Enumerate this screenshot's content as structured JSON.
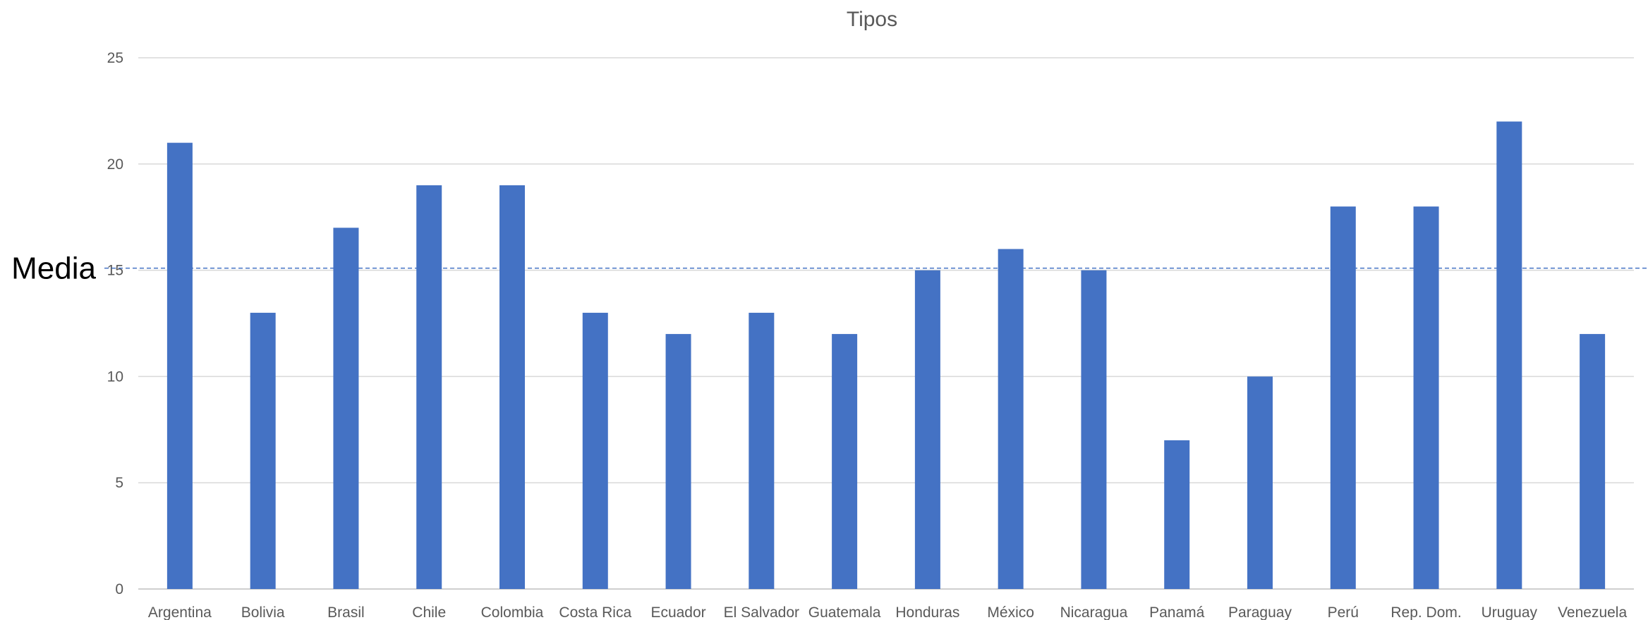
{
  "chart_data": {
    "type": "bar",
    "title": "Tipos",
    "xlabel": "",
    "ylabel": "",
    "categories": [
      "Argentina",
      "Bolivia",
      "Brasil",
      "Chile",
      "Colombia",
      "Costa Rica",
      "Ecuador",
      "El Salvador",
      "Guatemala",
      "Honduras",
      "México",
      "Nicaragua",
      "Panamá",
      "Paraguay",
      "Perú",
      "Rep. Dom.",
      "Uruguay",
      "Venezuela"
    ],
    "values": [
      21,
      13,
      17,
      19,
      19,
      13,
      12,
      13,
      12,
      15,
      16,
      15,
      7,
      10,
      18,
      18,
      22,
      12
    ],
    "ylim": [
      0,
      25
    ],
    "yticks": [
      0,
      5,
      10,
      15,
      20,
      25
    ],
    "grid": true,
    "legend": "none",
    "bar_color": "#4472C4",
    "reference_line": {
      "label": "Media",
      "value": 15.1,
      "style": "dashed",
      "color": "#4472C4"
    }
  }
}
